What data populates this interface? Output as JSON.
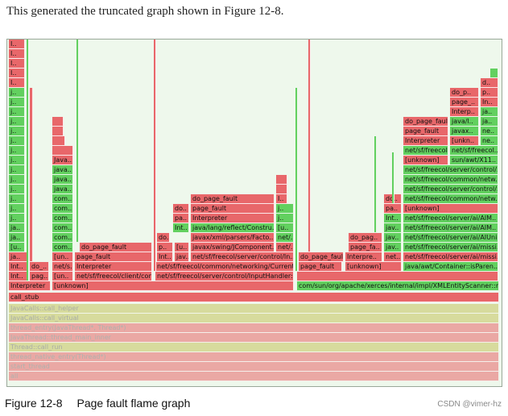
{
  "intro_text": "This generated the truncated graph shown in Figure 12-8.",
  "figure": {
    "number": "Figure 12-8",
    "title": "Page fault flame graph"
  },
  "watermark": "CSDN @vimer-hz",
  "colors": {
    "red": "#e8676a",
    "green": "#62d05f",
    "orange": "#d9b16a",
    "olive": "#c8c86a",
    "background": "#eef8ec"
  },
  "bottom_frames": [
    "all",
    "start_thread",
    "thread_native_entry(Thread*)",
    "Thread::call_run",
    "JavaThread::thread_main_inner",
    "thread_entry(JavaThread*, Thread*)",
    "JavaCalls::call_virtual",
    "JavaCalls::call_helper"
  ],
  "call_stub": "call_stub",
  "left": {
    "interpreter": "Interpreter",
    "int": "Int..",
    "do": "do_..",
    "ja": "ja..",
    "j": "j..",
    "i": "I..",
    "pag": "pag..",
    "un": "[un..",
    "unknown": "[unknown]",
    "nets": "net/s..",
    "netsf_client": "net/sf/freecol/client/con..",
    "com": "com..",
    "java": "java..",
    "javac": "Java..",
    "page_fault": "page_fault",
    "do_page_fault": "do_page_fault",
    "u": "[u.."
  },
  "middle": {
    "netsf_server_input": "net/sf/freecol/server/control/InputHandler::..",
    "netsf_common_current": "net/sf/freecol/common/networking/Current..",
    "netsf_server_in": "net/sf/freecol/server/control/In..",
    "jav": "jav..",
    "javax_swing": "javax/swing/JComponent..",
    "javax_xml": "javax/xml/parsers/Facto..",
    "java_lang": "java/lang/reflect/Constru..",
    "net": "net/..",
    "interpreter": "Interpreter",
    "pa": "pa..",
    "do_": "do..",
    "page_fault": "page_fault",
    "do_page_fault": "do_page_fault",
    "p": "p..",
    "i": "I..",
    "j": "j.."
  },
  "right": {
    "interpreter": "Interpreter",
    "xerces": "com/sun/org/apache/xerces/internal/impl/XMLEntityScanner::re..",
    "page_fault": "page_fault",
    "unknown": "[unknown]",
    "container": "java/awt/Container::isParen..",
    "interpre": "Interpre..",
    "net": "net..",
    "do_page_fault": "do_page_fault",
    "jav": "jav..",
    "page_fa": "page_fa..",
    "do_pag": "do_pag..",
    "int": "Int..",
    "pa": "pa..",
    "do": "do..",
    "ai_missi": "net/sf/freecol/server/ai/missi..",
    "ai_missi2": "net/sf/freecol/server/ai/missi..",
    "ai_aiuni": "net/sf/freecol/server/ai/AIUni..",
    "ai_aim": "net/sf/freecol/server/ai/AIM..",
    "ai_aim2": "net/sf/freecol/server/ai/AIM..",
    "common_netw": "net/sf/freecol/common/netw..",
    "server_control": "net/sf/freecol/server/control/..",
    "common_netw2": "net/sf/freecol/common/netw..",
    "server_control2": "net/sf/freecol/server/control/..",
    "sun_awt": "sun/awt/X11..",
    "netsf_freecol": "net/sf/freecol..",
    "netsf_freecol2": "net/sf/freecol..",
    "unkn": "[unkn..",
    "ne": "ne..",
    "javax": "javax..",
    "java_l": "java/l..",
    "ja": "ja..",
    "interp": "Interp..",
    "page_": "page_..",
    "in": "In..",
    "do_p": "do_p..",
    "p": "p..",
    "d": "d.."
  }
}
